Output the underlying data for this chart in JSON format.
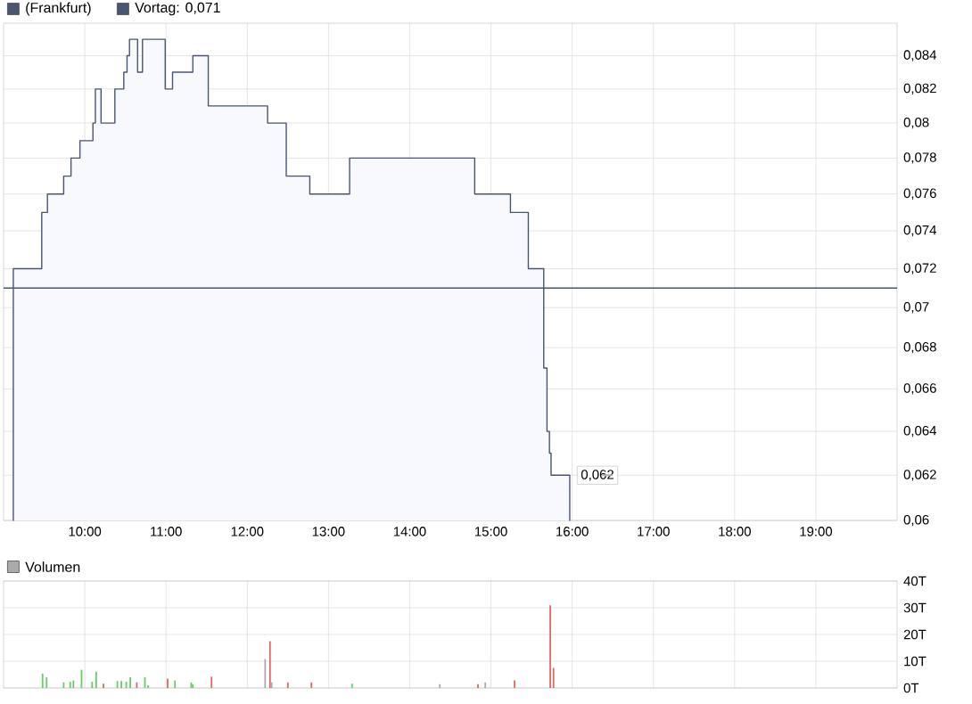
{
  "chart_data": [
    {
      "type": "area",
      "xlim": [
        9,
        20
      ],
      "ylim": [
        0.06,
        0.086
      ],
      "log": "y",
      "grid": true,
      "legend": "top",
      "xticks": [
        {
          "value": 10,
          "label": "10:00"
        },
        {
          "value": 11,
          "label": "11:00"
        },
        {
          "value": 12,
          "label": "12:00"
        },
        {
          "value": 13,
          "label": "13:00"
        },
        {
          "value": 14,
          "label": "14:00"
        },
        {
          "value": 15,
          "label": "15:00"
        },
        {
          "value": 16,
          "label": "16:00"
        },
        {
          "value": 17,
          "label": "17:00"
        },
        {
          "value": 18,
          "label": "18:00"
        },
        {
          "value": 19,
          "label": "19:00"
        }
      ],
      "yticks": [
        {
          "value": 0.06,
          "label": "0,06"
        },
        {
          "value": 0.062,
          "label": "0,062"
        },
        {
          "value": 0.064,
          "label": "0,064"
        },
        {
          "value": 0.066,
          "label": "0,066"
        },
        {
          "value": 0.068,
          "label": "0,068"
        },
        {
          "value": 0.07,
          "label": "0,07"
        },
        {
          "value": 0.072,
          "label": "0,072"
        },
        {
          "value": 0.074,
          "label": "0,074"
        },
        {
          "value": 0.076,
          "label": "0,076"
        },
        {
          "value": 0.078,
          "label": "0,078"
        },
        {
          "value": 0.08,
          "label": "0,08"
        },
        {
          "value": 0.082,
          "label": "0,082"
        },
        {
          "value": 0.084,
          "label": "0,084"
        }
      ],
      "series": [
        {
          "name": "(Frankfurt)",
          "color": "#4a5570",
          "x": [
            9.12,
            9.47,
            9.47,
            9.54,
            9.54,
            9.74,
            9.74,
            9.83,
            9.83,
            9.94,
            9.94,
            10.1,
            10.1,
            10.13,
            10.13,
            10.2,
            10.2,
            10.37,
            10.37,
            10.48,
            10.48,
            10.52,
            10.52,
            10.55,
            10.55,
            10.65,
            10.65,
            10.71,
            10.71,
            10.99,
            10.99,
            11.08,
            11.08,
            11.33,
            11.33,
            11.52,
            11.52,
            12.25,
            12.25,
            12.48,
            12.48,
            12.77,
            12.77,
            13.26,
            13.26,
            14.8,
            14.8,
            15.24,
            15.24,
            15.46,
            15.46,
            15.65,
            15.65,
            15.69,
            15.69,
            15.72,
            15.72,
            15.74,
            15.74,
            15.97
          ],
          "values": [
            0.072,
            0.072,
            0.075,
            0.075,
            0.076,
            0.076,
            0.077,
            0.077,
            0.078,
            0.078,
            0.079,
            0.079,
            0.08,
            0.08,
            0.082,
            0.082,
            0.08,
            0.08,
            0.082,
            0.082,
            0.083,
            0.083,
            0.084,
            0.084,
            0.085,
            0.085,
            0.083,
            0.083,
            0.085,
            0.085,
            0.082,
            0.082,
            0.083,
            0.083,
            0.084,
            0.084,
            0.081,
            0.081,
            0.08,
            0.08,
            0.077,
            0.077,
            0.076,
            0.076,
            0.078,
            0.078,
            0.076,
            0.076,
            0.075,
            0.075,
            0.072,
            0.072,
            0.067,
            0.067,
            0.064,
            0.064,
            0.063,
            0.063,
            0.062,
            0.062
          ]
        }
      ],
      "ref_lines": [
        {
          "axis": "y",
          "value": 0.071,
          "label": "Vortag: 0,071",
          "color": "#4a5570"
        }
      ],
      "annotations": [
        {
          "text": "0,062",
          "x": 15.97,
          "y": 0.062
        }
      ]
    },
    {
      "type": "bar",
      "xlim": [
        9,
        20
      ],
      "ylim": [
        0,
        40
      ],
      "grid": true,
      "legend": "top",
      "tick_labels": "y",
      "yticks": [
        {
          "value": 0,
          "label": "0T"
        },
        {
          "value": 10,
          "label": "10T"
        },
        {
          "value": 20,
          "label": "20T"
        },
        {
          "value": 30,
          "label": "30T"
        },
        {
          "value": 40,
          "label": "40T"
        }
      ],
      "series": [
        {
          "name": "Volumen",
          "color": "#aaaaaa",
          "x": [
            9.48,
            9.53,
            9.74,
            9.82,
            9.86,
            9.96,
            10.09,
            10.14,
            10.23,
            10.4,
            10.45,
            10.51,
            10.56,
            10.64,
            10.74,
            10.78,
            11.02,
            11.11,
            11.31,
            11.33,
            11.56,
            12.22,
            12.28,
            12.3,
            12.5,
            12.79,
            13.29,
            14.37,
            14.84,
            14.93,
            15.29,
            15.73,
            15.77
          ],
          "values": [
            5.4,
            4,
            2.1,
            2.3,
            2.8,
            6.8,
            2.3,
            6.1,
            1.6,
            2.6,
            2.6,
            2.3,
            4,
            2.1,
            4,
            1,
            3.5,
            2.8,
            2.1,
            1.4,
            4.2,
            10.8,
            17.5,
            2.1,
            2.1,
            2.1,
            1.6,
            1.4,
            1.4,
            2.1,
            2.8,
            30.9,
            7.5
          ],
          "colors": [
            "#66cc66",
            "#66cc66",
            "#66cc66",
            "#66cc66",
            "#66cc66",
            "#66cc66",
            "#66cc66",
            "#66cc66",
            "#e06666",
            "#66cc66",
            "#66cc66",
            "#66cc66",
            "#66cc66",
            "#e06666",
            "#66cc66",
            "#66cc66",
            "#e06666",
            "#66cc66",
            "#66cc66",
            "#66cc66",
            "#e06666",
            "#aaaaaa",
            "#e06666",
            "#aaaaaa",
            "#e06666",
            "#e06666",
            "#66cc66",
            "#aaaaaa",
            "#e06666",
            "#aaaaaa",
            "#e06666",
            "#e06666",
            "#e06666"
          ]
        }
      ]
    }
  ]
}
